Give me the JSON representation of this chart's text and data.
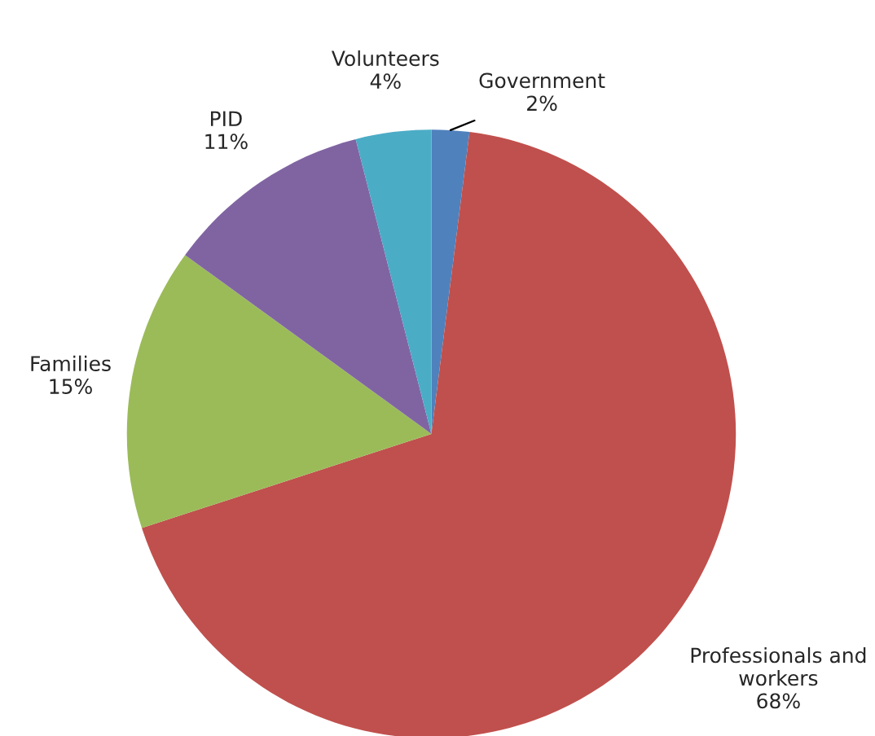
{
  "chart_data": {
    "type": "pie",
    "categories": [
      "Government",
      "Professionals and workers",
      "Families",
      "PID",
      "Volunteers"
    ],
    "values": [
      2,
      68,
      15,
      11,
      4
    ],
    "value_labels": [
      "2%",
      "68%",
      "15%",
      "11%",
      "4%"
    ],
    "colors": [
      "#4f81bd",
      "#c0504d",
      "#9bbb59",
      "#8064a2",
      "#4bacc6"
    ],
    "legend": false
  }
}
